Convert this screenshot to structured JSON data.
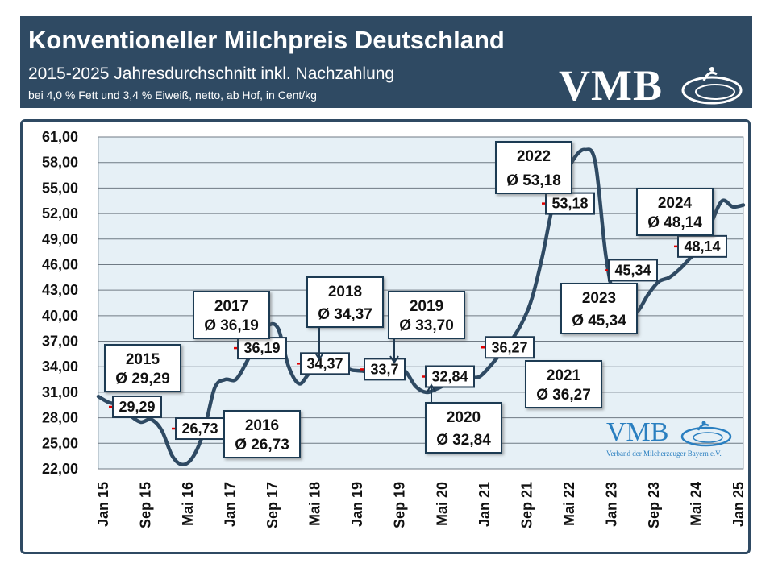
{
  "header": {
    "title": "Konventioneller Milchpreis Deutschland",
    "subtitle": "2015-2025 Jahresdurchschnitt inkl. Nachzahlung",
    "note": "bei 4,0 % Fett und 3,4 % Eiweiß, netto, ab Hof, in Cent/kg",
    "logo": "VMB"
  },
  "logo_bottom": {
    "name": "VMB",
    "subtitle": "Verband der Milcherzeuger Bayern e.V."
  },
  "colors": {
    "header_bg": "#2f4a63",
    "line": "#2f4a63",
    "plot_bg": "#e6f0f6",
    "marker": "#e00000",
    "logo_blue": "#2a7fc0"
  },
  "chart_data": {
    "type": "line",
    "ylim": [
      22,
      61
    ],
    "y_ticks": [
      "22,00",
      "25,00",
      "28,00",
      "31,00",
      "34,00",
      "37,00",
      "40,00",
      "43,00",
      "46,00",
      "49,00",
      "52,00",
      "55,00",
      "58,00",
      "61,00"
    ],
    "x_ticks": [
      "Jan 15",
      "Sep 15",
      "Mai 16",
      "Jan 17",
      "Sep 17",
      "Mai 18",
      "Jan 19",
      "Sep 19",
      "Mai 20",
      "Jan 21",
      "Sep 21",
      "Mai 22",
      "Jan 23",
      "Sep 23",
      "Mai 24",
      "Jan 25"
    ],
    "grid": true,
    "series": [
      {
        "x": [
          "Jan 15",
          "Mrz 15",
          "Mai 15",
          "Jul 15",
          "Sep 15",
          "Nov 15",
          "Jan 16",
          "Mrz 16",
          "Mai 16",
          "Jul 16",
          "Sep 16",
          "Nov 16",
          "Jan 17",
          "Mrz 17",
          "Mai 17",
          "Jul 17",
          "Sep 17",
          "Nov 17",
          "Jan 18",
          "Mrz 18",
          "Mai 18",
          "Jul 18",
          "Sep 18",
          "Nov 18",
          "Jan 19",
          "Mrz 19",
          "Mai 19",
          "Jul 19",
          "Sep 19",
          "Nov 19",
          "Jan 20",
          "Mrz 20",
          "Mai 20",
          "Jul 20",
          "Sep 20",
          "Nov 20",
          "Jan 21",
          "Mrz 21",
          "Mai 21",
          "Jul 21",
          "Sep 21",
          "Nov 21",
          "Jan 22",
          "Mrz 22",
          "Mai 22",
          "Jul 22",
          "Sep 22",
          "Nov 22",
          "Jan 23",
          "Mrz 23",
          "Mai 23",
          "Jul 23",
          "Sep 23",
          "Nov 23",
          "Jan 24",
          "Mrz 24",
          "Mai 24",
          "Jul 24",
          "Sep 24",
          "Nov 24",
          "Jan 25",
          "Mrz 25"
        ],
        "values": [
          30.5,
          29.8,
          29.5,
          28.3,
          27.5,
          27.8,
          26.5,
          23.5,
          22.5,
          23.5,
          26.5,
          31.5,
          32.5,
          32.5,
          34.5,
          37.0,
          38.8,
          38.5,
          34.0,
          32.0,
          33.3,
          33.7,
          33.3,
          34.0,
          33.6,
          33.5,
          33.2,
          33.3,
          33.5,
          33.5,
          31.7,
          31.0,
          31.4,
          32.0,
          32.5,
          32.8,
          32.8,
          34.0,
          35.5,
          37.0,
          39.0,
          42.0,
          47.0,
          53.0,
          56.0,
          58.5,
          59.5,
          58.0,
          47.0,
          41.0,
          40.0,
          40.5,
          42.5,
          44.0,
          44.5,
          45.5,
          46.8,
          48.0,
          51.0,
          53.5,
          52.8,
          53.0
        ]
      }
    ],
    "annual_averages": [
      {
        "year": "2015",
        "label": "Ø 29,29",
        "value": 29.29,
        "tag": "29,29"
      },
      {
        "year": "2016",
        "label": "Ø 26,73",
        "value": 26.73,
        "tag": "26,73"
      },
      {
        "year": "2017",
        "label": "Ø 36,19",
        "value": 36.19,
        "tag": "36,19"
      },
      {
        "year": "2018",
        "label": "Ø 34,37",
        "value": 34.37,
        "tag": "34,37"
      },
      {
        "year": "2019",
        "label": "Ø 33,70",
        "value": 33.7,
        "tag": "33,7"
      },
      {
        "year": "2020",
        "label": "Ø 32,84",
        "value": 32.84,
        "tag": "32,84"
      },
      {
        "year": "2021",
        "label": "Ø 36,27",
        "value": 36.27,
        "tag": "36,27"
      },
      {
        "year": "2022",
        "label": "Ø 53,18",
        "value": 53.18,
        "tag": "53,18"
      },
      {
        "year": "2023",
        "label": "Ø 45,34",
        "value": 45.34,
        "tag": "45,34"
      },
      {
        "year": "2024",
        "label": "Ø 48,14",
        "value": 48.14,
        "tag": "48,14"
      }
    ]
  }
}
